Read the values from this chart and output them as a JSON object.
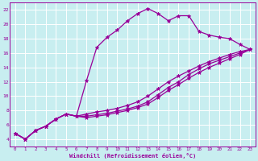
{
  "xlabel": "Windchill (Refroidissement éolien,°C)",
  "bg_color": "#c8eef0",
  "line_color": "#990099",
  "grid_color": "#ffffff",
  "xlim": [
    -0.5,
    23.5
  ],
  "ylim": [
    3,
    23
  ],
  "yticks": [
    4,
    6,
    8,
    10,
    12,
    14,
    16,
    18,
    20,
    22
  ],
  "xticks": [
    0,
    1,
    2,
    3,
    4,
    5,
    6,
    7,
    8,
    9,
    10,
    11,
    12,
    13,
    14,
    15,
    16,
    17,
    18,
    19,
    20,
    21,
    22,
    23
  ],
  "series": [
    {
      "x": [
        0,
        1,
        2,
        3,
        4,
        5,
        6,
        7,
        8,
        9,
        10,
        11,
        12,
        13,
        14,
        15,
        16,
        17,
        18,
        19,
        20,
        21,
        22,
        23
      ],
      "y": [
        4.8,
        4.0,
        5.2,
        5.8,
        6.8,
        7.5,
        7.2,
        12.2,
        16.8,
        18.2,
        19.2,
        20.5,
        21.5,
        22.2,
        21.5,
        20.5,
        21.2,
        21.2,
        19.0,
        18.5,
        18.2,
        18.0,
        17.2,
        16.5
      ]
    },
    {
      "x": [
        0,
        1,
        2,
        3,
        4,
        5,
        6,
        7,
        8,
        9,
        10,
        11,
        12,
        13,
        14,
        15,
        16,
        17,
        18,
        19,
        20,
        21,
        22,
        23
      ],
      "y": [
        4.8,
        4.0,
        5.2,
        5.8,
        6.8,
        7.5,
        7.2,
        7.5,
        7.8,
        8.0,
        8.3,
        8.7,
        9.2,
        10.0,
        11.0,
        12.0,
        12.8,
        13.5,
        14.2,
        14.8,
        15.3,
        15.8,
        16.2,
        16.5
      ]
    },
    {
      "x": [
        0,
        1,
        2,
        3,
        4,
        5,
        6,
        7,
        8,
        9,
        10,
        11,
        12,
        13,
        14,
        15,
        16,
        17,
        18,
        19,
        20,
        21,
        22,
        23
      ],
      "y": [
        4.8,
        4.0,
        5.2,
        5.8,
        6.8,
        7.5,
        7.2,
        7.2,
        7.4,
        7.6,
        7.9,
        8.2,
        8.6,
        9.2,
        10.2,
        11.2,
        12.0,
        13.0,
        13.8,
        14.5,
        15.0,
        15.5,
        16.0,
        16.5
      ]
    },
    {
      "x": [
        0,
        1,
        2,
        3,
        4,
        5,
        6,
        7,
        8,
        9,
        10,
        11,
        12,
        13,
        14,
        15,
        16,
        17,
        18,
        19,
        20,
        21,
        22,
        23
      ],
      "y": [
        4.8,
        4.0,
        5.2,
        5.8,
        6.8,
        7.5,
        7.2,
        7.0,
        7.2,
        7.4,
        7.7,
        8.0,
        8.4,
        8.9,
        9.8,
        10.8,
        11.6,
        12.5,
        13.3,
        14.0,
        14.6,
        15.2,
        15.8,
        16.5
      ]
    }
  ],
  "marker": "*",
  "markersize": 3.5,
  "linewidth": 0.9
}
